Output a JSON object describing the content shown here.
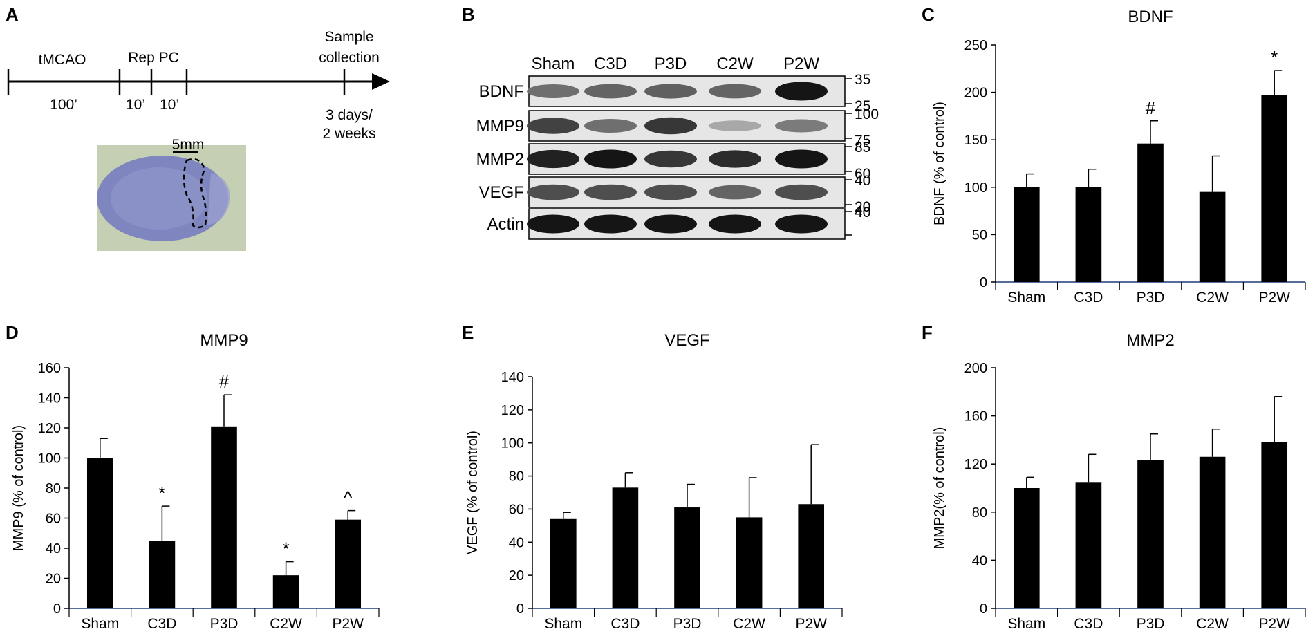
{
  "panels": {
    "A": "A",
    "B": "B",
    "C": "C",
    "D": "D",
    "E": "E",
    "F": "F"
  },
  "timeline": {
    "tmcao": "tMCAO",
    "rep_pc": "Rep PC",
    "sample": [
      "Sample",
      "collection"
    ],
    "d100": "100’",
    "d10a": "10’",
    "d10b": "10’",
    "end": [
      "3 days/",
      "2 weeks"
    ],
    "scale": "5mm"
  },
  "blot": {
    "lanes": [
      "Sham",
      "C3D",
      "P3D",
      "C2W",
      "P2W"
    ],
    "rows": [
      {
        "name": "BDNF",
        "mw": [
          "35",
          "25"
        ],
        "intensity": [
          0.55,
          0.6,
          0.62,
          0.6,
          0.95
        ]
      },
      {
        "name": "MMP9",
        "mw": [
          "100",
          "75"
        ],
        "intensity": [
          0.75,
          0.55,
          0.8,
          0.3,
          0.5
        ]
      },
      {
        "name": "MMP2",
        "mw": [
          "85",
          "60"
        ],
        "intensity": [
          0.9,
          0.95,
          0.8,
          0.85,
          0.95
        ]
      },
      {
        "name": "VEGF",
        "mw": [
          "40",
          "20"
        ],
        "intensity": [
          0.7,
          0.7,
          0.7,
          0.6,
          0.7
        ]
      },
      {
        "name": "Actin",
        "mw": [
          "40",
          ""
        ],
        "intensity": [
          0.95,
          0.95,
          0.95,
          0.95,
          0.95
        ]
      }
    ]
  },
  "chart_data": [
    {
      "id": "C",
      "type": "bar",
      "title": "BDNF",
      "ylabel": "BDNF (% of control)",
      "categories": [
        "Sham",
        "C3D",
        "P3D",
        "C2W",
        "P2W"
      ],
      "values": [
        100,
        100,
        146,
        95,
        197
      ],
      "errors": [
        14,
        19,
        24,
        38,
        26
      ],
      "annotations": [
        "",
        "",
        "#",
        "",
        "*"
      ],
      "ylim": [
        0,
        250
      ],
      "yticks": [
        0,
        50,
        100,
        150,
        200,
        250
      ]
    },
    {
      "id": "D",
      "type": "bar",
      "title": "MMP9",
      "ylabel": "MMP9 (% of control)",
      "categories": [
        "Sham",
        "C3D",
        "P3D",
        "C2W",
        "P2W"
      ],
      "values": [
        100,
        45,
        121,
        22,
        59
      ],
      "errors": [
        13,
        23,
        21,
        9,
        6
      ],
      "annotations": [
        "",
        "*",
        "#",
        "*",
        "^"
      ],
      "ylim": [
        0,
        160
      ],
      "yticks": [
        0,
        20,
        40,
        60,
        80,
        100,
        120,
        140,
        160
      ]
    },
    {
      "id": "E",
      "type": "bar",
      "title": "VEGF",
      "ylabel": "VEGF (% of control)",
      "categories": [
        "Sham",
        "C3D",
        "P3D",
        "C2W",
        "P2W"
      ],
      "values": [
        54,
        73,
        61,
        55,
        63
      ],
      "errors": [
        4,
        9,
        14,
        24,
        36
      ],
      "annotations": [
        "",
        "",
        "",
        "",
        ""
      ],
      "ylim": [
        0,
        140
      ],
      "yticks": [
        0,
        20,
        40,
        60,
        80,
        100,
        120,
        140
      ]
    },
    {
      "id": "F",
      "type": "bar",
      "title": "MMP2",
      "ylabel": "MMP2(% of control)",
      "categories": [
        "Sham",
        "C3D",
        "P3D",
        "C2W",
        "P2W"
      ],
      "values": [
        100,
        105,
        123,
        126,
        138
      ],
      "errors": [
        9,
        23,
        22,
        23,
        38
      ],
      "annotations": [
        "",
        "",
        "",
        "",
        ""
      ],
      "ylim": [
        0,
        200
      ],
      "yticks": [
        0,
        40,
        80,
        120,
        160,
        200
      ]
    }
  ]
}
